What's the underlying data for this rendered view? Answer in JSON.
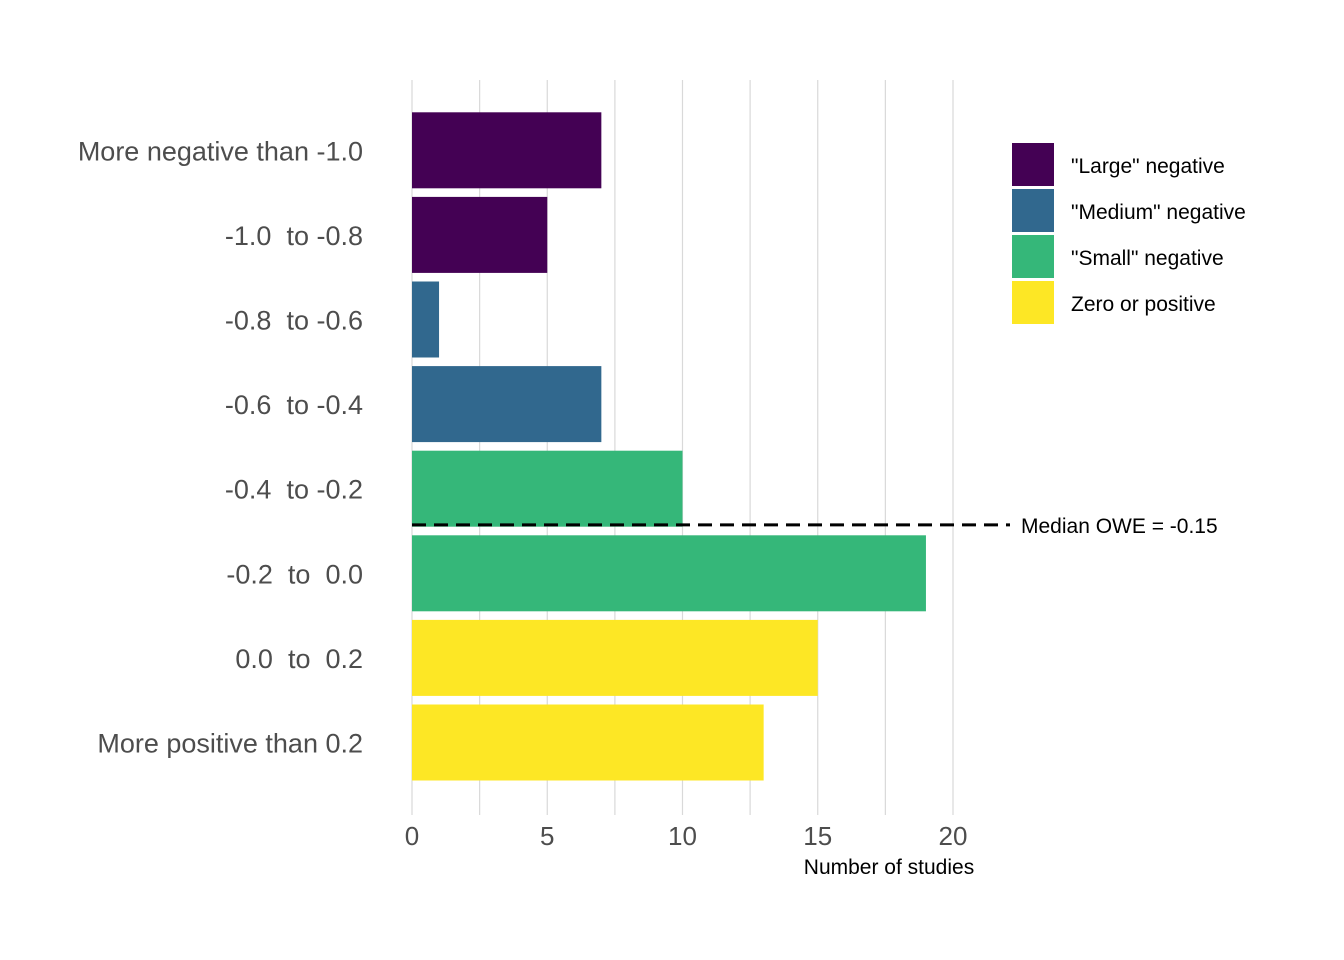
{
  "chart_data": {
    "type": "bar",
    "orientation": "horizontal",
    "categories": [
      "More negative than -1.0",
      "-1.0  to -0.8",
      "-0.8  to -0.6",
      "-0.6  to -0.4",
      "-0.4  to -0.2",
      "-0.2  to  0.0",
      "0.0  to  0.2",
      "More positive than 0.2"
    ],
    "values": [
      7,
      5,
      1,
      7,
      10,
      19,
      15,
      13
    ],
    "groups": [
      "\"Large\" negative",
      "\"Large\" negative",
      "\"Medium\" negative",
      "\"Medium\" negative",
      "\"Small\" negative",
      "\"Small\" negative",
      "Zero or positive",
      "Zero or positive"
    ],
    "legend": {
      "position": "top-right",
      "items": [
        {
          "name": "\"Large\" negative",
          "color": "#440154"
        },
        {
          "name": "\"Medium\" negative",
          "color": "#31688e"
        },
        {
          "name": "\"Small\" negative",
          "color": "#35b779"
        },
        {
          "name": "Zero or positive",
          "color": "#fde725"
        }
      ]
    },
    "xlabel": "Number of studies",
    "ylabel": "",
    "xlim": [
      0,
      20
    ],
    "xticks": [
      0,
      5,
      10,
      15,
      20
    ],
    "grid": true,
    "reference_line": {
      "label": "Median OWE = -0.15",
      "value": -0.15,
      "style": "dashed",
      "color": "#000000"
    }
  }
}
